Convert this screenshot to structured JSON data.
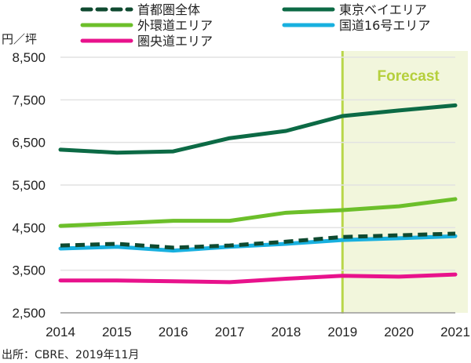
{
  "chart_data": {
    "type": "line",
    "title": "",
    "xlabel": "",
    "ylabel": "円／坪",
    "x": [
      "2014",
      "2015",
      "2016",
      "2017",
      "2018",
      "2019",
      "2020",
      "2021"
    ],
    "ylim": [
      2500,
      8500
    ],
    "yticks": [
      "8,500",
      "7,500",
      "6,500",
      "5,500",
      "4,500",
      "3,500",
      "2,500"
    ],
    "ytick_values": [
      8500,
      7500,
      6500,
      5500,
      4500,
      3500,
      2500
    ],
    "grid": true,
    "legend_position": "top",
    "forecast": {
      "label": "Forecast",
      "from": "2019",
      "to": "2021",
      "color": "#f2f6dc",
      "line_color": "#b9d64a"
    },
    "series": [
      {
        "name": "首都圏全体",
        "color": "#0f4a30",
        "dashed": true,
        "values": [
          4080,
          4120,
          4030,
          4080,
          4170,
          4280,
          4320,
          4360
        ]
      },
      {
        "name": "東京ベイエリア",
        "color": "#0c6a45",
        "dashed": false,
        "values": [
          6330,
          6260,
          6290,
          6600,
          6770,
          7120,
          7250,
          7370
        ]
      },
      {
        "name": "外環道エリア",
        "color": "#6cbf2a",
        "dashed": false,
        "values": [
          4540,
          4600,
          4660,
          4660,
          4850,
          4910,
          5000,
          5170
        ]
      },
      {
        "name": "国道16号エリア",
        "color": "#18b0df",
        "dashed": false,
        "values": [
          4010,
          4050,
          3960,
          4050,
          4120,
          4210,
          4250,
          4300
        ]
      },
      {
        "name": "圏央道エリア",
        "color": "#e8128c",
        "dashed": false,
        "values": [
          3260,
          3260,
          3240,
          3220,
          3300,
          3370,
          3350,
          3400
        ]
      }
    ],
    "source": "出所：CBRE、2019年11月"
  }
}
